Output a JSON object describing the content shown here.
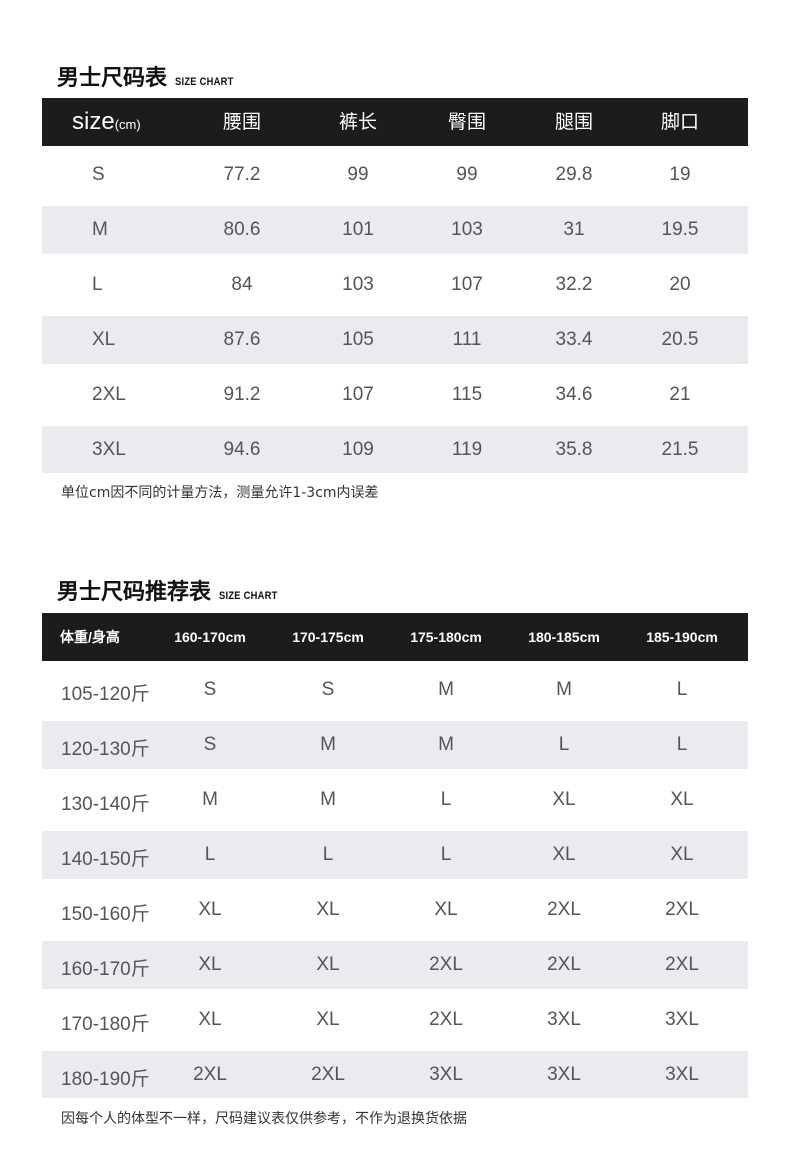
{
  "size_chart": {
    "title_zh": "男士尺码表",
    "title_en": "SIZE CHART",
    "header": {
      "size_main": "size",
      "size_unit": "(cm)",
      "columns": [
        "腰围",
        "裤长",
        "臀围",
        "腿围",
        "脚口"
      ]
    },
    "rows": [
      {
        "size": "S",
        "values": [
          "77.2",
          "99",
          "99",
          "29.8",
          "19"
        ]
      },
      {
        "size": "M",
        "values": [
          "80.6",
          "101",
          "103",
          "31",
          "19.5"
        ]
      },
      {
        "size": "L",
        "values": [
          "84",
          "103",
          "107",
          "32.2",
          "20"
        ]
      },
      {
        "size": "XL",
        "values": [
          "87.6",
          "105",
          "111",
          "33.4",
          "20.5"
        ]
      },
      {
        "size": "2XL",
        "values": [
          "91.2",
          "107",
          "115",
          "34.6",
          "21"
        ]
      },
      {
        "size": "3XL",
        "values": [
          "94.6",
          "109",
          "119",
          "35.8",
          "21.5"
        ]
      }
    ],
    "note": "单位cm因不同的计量方法，测量允许1-3cm内误差"
  },
  "recommend_chart": {
    "title_zh": "男士尺码推荐表",
    "title_en": "SIZE CHART",
    "header": [
      "体重/身高",
      "160-170cm",
      "170-175cm",
      "175-180cm",
      "180-185cm",
      "185-190cm"
    ],
    "rows": [
      {
        "weight": "105-120斤",
        "sizes": [
          "S",
          "S",
          "M",
          "M",
          "L"
        ]
      },
      {
        "weight": "120-130斤",
        "sizes": [
          "S",
          "M",
          "M",
          "L",
          "L"
        ]
      },
      {
        "weight": "130-140斤",
        "sizes": [
          "M",
          "M",
          "L",
          "XL",
          "XL"
        ]
      },
      {
        "weight": "140-150斤",
        "sizes": [
          "L",
          "L",
          "L",
          "XL",
          "XL"
        ]
      },
      {
        "weight": "150-160斤",
        "sizes": [
          "XL",
          "XL",
          "XL",
          "2XL",
          "2XL"
        ]
      },
      {
        "weight": "160-170斤",
        "sizes": [
          "XL",
          "XL",
          "2XL",
          "2XL",
          "2XL"
        ]
      },
      {
        "weight": "170-180斤",
        "sizes": [
          "XL",
          "XL",
          "2XL",
          "3XL",
          "3XL"
        ]
      },
      {
        "weight": "180-190斤",
        "sizes": [
          "2XL",
          "2XL",
          "3XL",
          "3XL",
          "3XL"
        ]
      }
    ],
    "note": "因每个人的体型不一样，尺码建议表仅供参考，不作为退换货依据"
  },
  "colors": {
    "header_bg": "#1c1c1c",
    "alt_row_bg": "#ebebef",
    "cell_text": "#555555"
  }
}
